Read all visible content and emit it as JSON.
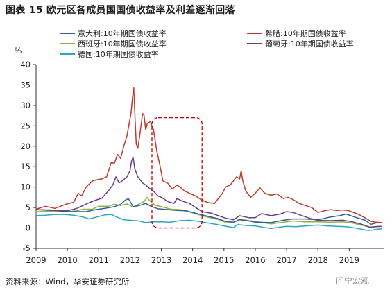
{
  "header": {
    "title": "图表 15  欧元区各成员国国债收益率及利差逐渐回落"
  },
  "footer": {
    "source": "资料来源：Wind，华安证券研究所",
    "watermark": "问宁宏观"
  },
  "chart_data": {
    "type": "line",
    "ylabel": "%",
    "ylim": [
      -5,
      40
    ],
    "yticks": [
      -5,
      0,
      5,
      10,
      15,
      20,
      25,
      30,
      35,
      40
    ],
    "xlim": [
      2009,
      2020.1
    ],
    "xticks": [
      "2009",
      "2010",
      "2011",
      "2012",
      "2013",
      "2014",
      "2015",
      "2016",
      "2017",
      "2018",
      "2019"
    ],
    "legend_position": "top",
    "annotation": {
      "type": "dashed-rounded-rect",
      "color": "#c00000",
      "x_range": [
        2012.7,
        2014.3
      ],
      "y_range": [
        0,
        27
      ]
    },
    "series": [
      {
        "name": "意大利:10年期国债收益率",
        "color": "#2f5f9e",
        "points": [
          [
            2009.0,
            4.5
          ],
          [
            2009.5,
            4.4
          ],
          [
            2010.0,
            4.0
          ],
          [
            2010.3,
            4.0
          ],
          [
            2010.6,
            4.0
          ],
          [
            2010.9,
            4.5
          ],
          [
            2011.2,
            4.8
          ],
          [
            2011.5,
            5.2
          ],
          [
            2011.7,
            5.8
          ],
          [
            2011.85,
            6.8
          ],
          [
            2011.95,
            7.2
          ],
          [
            2012.1,
            5.2
          ],
          [
            2012.3,
            5.5
          ],
          [
            2012.5,
            6.0
          ],
          [
            2012.7,
            5.2
          ],
          [
            2012.9,
            4.7
          ],
          [
            2013.2,
            4.5
          ],
          [
            2013.5,
            4.3
          ],
          [
            2013.8,
            4.2
          ],
          [
            2014.0,
            3.8
          ],
          [
            2014.4,
            3.0
          ],
          [
            2014.8,
            2.3
          ],
          [
            2015.0,
            1.7
          ],
          [
            2015.3,
            1.4
          ],
          [
            2015.5,
            2.0
          ],
          [
            2015.8,
            1.7
          ],
          [
            2016.0,
            1.4
          ],
          [
            2016.5,
            1.3
          ],
          [
            2016.9,
            1.9
          ],
          [
            2017.2,
            2.2
          ],
          [
            2017.6,
            2.2
          ],
          [
            2018.0,
            2.0
          ],
          [
            2018.4,
            2.7
          ],
          [
            2018.7,
            3.0
          ],
          [
            2018.9,
            3.4
          ],
          [
            2019.2,
            2.6
          ],
          [
            2019.5,
            1.9
          ],
          [
            2019.7,
            0.9
          ],
          [
            2019.9,
            1.3
          ],
          [
            2020.05,
            1.3
          ]
        ]
      },
      {
        "name": "希腊:10年期国债收益率",
        "color": "#c0392b",
        "points": [
          [
            2009.0,
            4.6
          ],
          [
            2009.3,
            5.3
          ],
          [
            2009.6,
            4.8
          ],
          [
            2009.95,
            5.8
          ],
          [
            2010.2,
            6.3
          ],
          [
            2010.35,
            8.5
          ],
          [
            2010.45,
            7.8
          ],
          [
            2010.6,
            10.0
          ],
          [
            2010.8,
            11.5
          ],
          [
            2010.95,
            11.8
          ],
          [
            2011.1,
            12.0
          ],
          [
            2011.25,
            12.5
          ],
          [
            2011.4,
            16.0
          ],
          [
            2011.5,
            15.8
          ],
          [
            2011.6,
            18.0
          ],
          [
            2011.7,
            17.0
          ],
          [
            2011.8,
            20.0
          ],
          [
            2011.9,
            22.5
          ],
          [
            2011.97,
            25.5
          ],
          [
            2012.03,
            28.0
          ],
          [
            2012.08,
            32.0
          ],
          [
            2012.12,
            34.3
          ],
          [
            2012.16,
            27.0
          ],
          [
            2012.2,
            20.5
          ],
          [
            2012.25,
            19.5
          ],
          [
            2012.3,
            22.0
          ],
          [
            2012.4,
            28.0
          ],
          [
            2012.45,
            27.5
          ],
          [
            2012.5,
            24.0
          ],
          [
            2012.55,
            25.5
          ],
          [
            2012.65,
            26.0
          ],
          [
            2012.75,
            24.0
          ],
          [
            2012.85,
            19.0
          ],
          [
            2012.95,
            15.5
          ],
          [
            2013.05,
            11.5
          ],
          [
            2013.2,
            11.0
          ],
          [
            2013.35,
            9.5
          ],
          [
            2013.5,
            10.5
          ],
          [
            2013.6,
            10.0
          ],
          [
            2013.75,
            9.0
          ],
          [
            2013.95,
            8.3
          ],
          [
            2014.1,
            7.8
          ],
          [
            2014.3,
            6.8
          ],
          [
            2014.5,
            6.2
          ],
          [
            2014.7,
            6.0
          ],
          [
            2014.8,
            7.0
          ],
          [
            2014.95,
            8.5
          ],
          [
            2015.05,
            10.0
          ],
          [
            2015.2,
            10.5
          ],
          [
            2015.3,
            11.5
          ],
          [
            2015.4,
            12.5
          ],
          [
            2015.5,
            12.0
          ],
          [
            2015.55,
            14.0
          ],
          [
            2015.6,
            11.5
          ],
          [
            2015.7,
            9.0
          ],
          [
            2015.85,
            7.5
          ],
          [
            2016.0,
            8.5
          ],
          [
            2016.15,
            9.8
          ],
          [
            2016.3,
            8.5
          ],
          [
            2016.5,
            8.0
          ],
          [
            2016.7,
            8.3
          ],
          [
            2016.9,
            7.2
          ],
          [
            2017.05,
            7.5
          ],
          [
            2017.2,
            7.0
          ],
          [
            2017.4,
            6.0
          ],
          [
            2017.6,
            5.5
          ],
          [
            2017.8,
            5.0
          ],
          [
            2018.0,
            3.8
          ],
          [
            2018.2,
            4.2
          ],
          [
            2018.4,
            4.5
          ],
          [
            2018.6,
            4.3
          ],
          [
            2018.8,
            4.4
          ],
          [
            2018.95,
            4.3
          ],
          [
            2019.1,
            3.9
          ],
          [
            2019.3,
            3.3
          ],
          [
            2019.5,
            2.5
          ],
          [
            2019.7,
            1.6
          ],
          [
            2019.85,
            1.4
          ],
          [
            2020.05,
            1.3
          ]
        ]
      },
      {
        "name": "西班牙:10年期国债收益率",
        "color": "#8db33f",
        "points": [
          [
            2009.0,
            4.0
          ],
          [
            2009.5,
            4.1
          ],
          [
            2010.0,
            4.0
          ],
          [
            2010.3,
            4.2
          ],
          [
            2010.5,
            4.6
          ],
          [
            2010.8,
            4.6
          ],
          [
            2011.0,
            5.3
          ],
          [
            2011.3,
            5.3
          ],
          [
            2011.5,
            5.8
          ],
          [
            2011.7,
            5.5
          ],
          [
            2011.9,
            5.9
          ],
          [
            2012.1,
            5.1
          ],
          [
            2012.3,
            5.9
          ],
          [
            2012.45,
            6.5
          ],
          [
            2012.55,
            7.5
          ],
          [
            2012.65,
            6.5
          ],
          [
            2012.8,
            5.6
          ],
          [
            2013.0,
            5.2
          ],
          [
            2013.3,
            4.6
          ],
          [
            2013.6,
            4.5
          ],
          [
            2014.0,
            3.7
          ],
          [
            2014.4,
            2.8
          ],
          [
            2014.8,
            2.1
          ],
          [
            2015.0,
            1.5
          ],
          [
            2015.3,
            1.3
          ],
          [
            2015.5,
            2.2
          ],
          [
            2015.8,
            1.8
          ],
          [
            2016.0,
            1.6
          ],
          [
            2016.5,
            1.0
          ],
          [
            2016.9,
            1.4
          ],
          [
            2017.2,
            1.7
          ],
          [
            2017.6,
            1.5
          ],
          [
            2018.0,
            1.5
          ],
          [
            2018.4,
            1.4
          ],
          [
            2018.8,
            1.5
          ],
          [
            2019.1,
            1.2
          ],
          [
            2019.5,
            0.5
          ],
          [
            2019.7,
            0.1
          ],
          [
            2019.9,
            0.4
          ],
          [
            2020.05,
            0.4
          ]
        ]
      },
      {
        "name": "葡萄牙:10年期国债收益率",
        "color": "#6a3d8a",
        "points": [
          [
            2009.0,
            4.5
          ],
          [
            2009.5,
            4.3
          ],
          [
            2010.0,
            4.2
          ],
          [
            2010.3,
            4.8
          ],
          [
            2010.5,
            5.5
          ],
          [
            2010.7,
            6.2
          ],
          [
            2010.9,
            6.8
          ],
          [
            2011.1,
            7.3
          ],
          [
            2011.3,
            9.0
          ],
          [
            2011.45,
            10.5
          ],
          [
            2011.55,
            12.5
          ],
          [
            2011.65,
            11.0
          ],
          [
            2011.75,
            11.5
          ],
          [
            2011.9,
            12.5
          ],
          [
            2012.0,
            14.0
          ],
          [
            2012.05,
            16.5
          ],
          [
            2012.1,
            17.3
          ],
          [
            2012.15,
            14.5
          ],
          [
            2012.25,
            12.5
          ],
          [
            2012.4,
            11.0
          ],
          [
            2012.5,
            10.5
          ],
          [
            2012.6,
            9.8
          ],
          [
            2012.75,
            9.0
          ],
          [
            2012.9,
            7.8
          ],
          [
            2013.0,
            7.5
          ],
          [
            2013.2,
            6.5
          ],
          [
            2013.4,
            6.0
          ],
          [
            2013.5,
            7.2
          ],
          [
            2013.7,
            6.5
          ],
          [
            2013.9,
            6.0
          ],
          [
            2014.1,
            5.0
          ],
          [
            2014.3,
            4.0
          ],
          [
            2014.6,
            3.6
          ],
          [
            2014.9,
            2.8
          ],
          [
            2015.05,
            2.4
          ],
          [
            2015.3,
            2.0
          ],
          [
            2015.5,
            3.0
          ],
          [
            2015.8,
            2.5
          ],
          [
            2016.0,
            2.5
          ],
          [
            2016.2,
            3.5
          ],
          [
            2016.5,
            3.0
          ],
          [
            2016.8,
            3.4
          ],
          [
            2017.0,
            4.0
          ],
          [
            2017.2,
            3.8
          ],
          [
            2017.5,
            3.0
          ],
          [
            2017.8,
            2.2
          ],
          [
            2018.0,
            1.9
          ],
          [
            2018.4,
            1.8
          ],
          [
            2018.8,
            1.9
          ],
          [
            2019.1,
            1.5
          ],
          [
            2019.4,
            0.9
          ],
          [
            2019.65,
            0.2
          ],
          [
            2019.85,
            0.3
          ],
          [
            2020.05,
            0.4
          ]
        ]
      },
      {
        "name": "德国:10年期国债收益率",
        "color": "#2aa7c4",
        "points": [
          [
            2009.0,
            3.0
          ],
          [
            2009.3,
            3.1
          ],
          [
            2009.6,
            3.3
          ],
          [
            2009.9,
            3.3
          ],
          [
            2010.2,
            3.1
          ],
          [
            2010.5,
            2.7
          ],
          [
            2010.7,
            2.2
          ],
          [
            2010.9,
            2.6
          ],
          [
            2011.2,
            3.2
          ],
          [
            2011.4,
            3.3
          ],
          [
            2011.6,
            2.6
          ],
          [
            2011.8,
            2.0
          ],
          [
            2012.0,
            1.9
          ],
          [
            2012.3,
            1.7
          ],
          [
            2012.5,
            1.3
          ],
          [
            2012.75,
            1.5
          ],
          [
            2013.0,
            1.5
          ],
          [
            2013.3,
            1.4
          ],
          [
            2013.6,
            1.8
          ],
          [
            2013.9,
            1.9
          ],
          [
            2014.2,
            1.6
          ],
          [
            2014.5,
            1.2
          ],
          [
            2014.8,
            0.8
          ],
          [
            2015.0,
            0.5
          ],
          [
            2015.3,
            0.1
          ],
          [
            2015.45,
            0.8
          ],
          [
            2015.7,
            0.6
          ],
          [
            2016.0,
            0.5
          ],
          [
            2016.3,
            0.1
          ],
          [
            2016.5,
            -0.15
          ],
          [
            2016.8,
            0.2
          ],
          [
            2017.0,
            0.4
          ],
          [
            2017.3,
            0.3
          ],
          [
            2017.6,
            0.5
          ],
          [
            2018.0,
            0.7
          ],
          [
            2018.3,
            0.5
          ],
          [
            2018.6,
            0.4
          ],
          [
            2018.9,
            0.3
          ],
          [
            2019.1,
            0.1
          ],
          [
            2019.4,
            -0.3
          ],
          [
            2019.6,
            -0.6
          ],
          [
            2019.75,
            -0.5
          ],
          [
            2019.9,
            -0.3
          ],
          [
            2020.05,
            -0.2
          ]
        ]
      }
    ]
  }
}
